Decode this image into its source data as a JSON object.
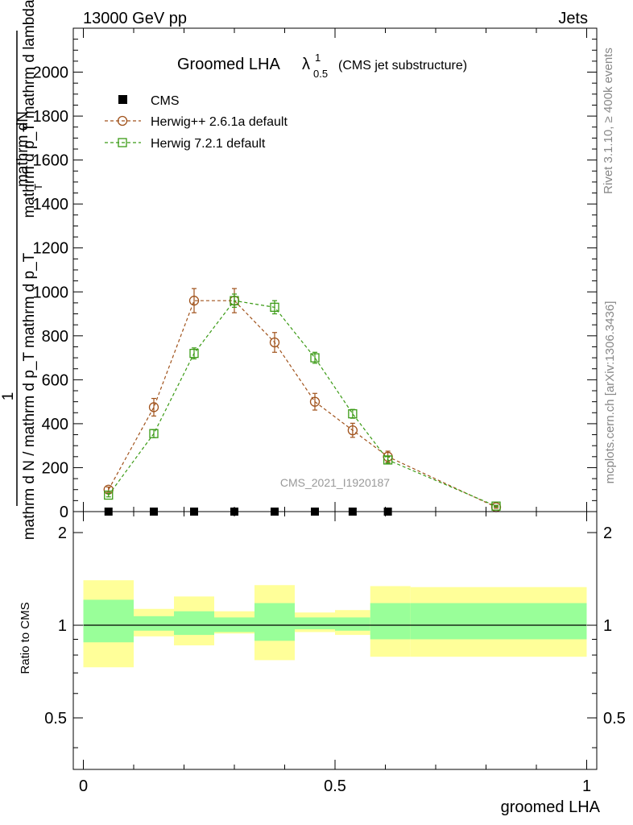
{
  "header": {
    "left": "13000 GeV pp",
    "right": "Jets"
  },
  "side_labels": {
    "rivet": "Rivet 3.1.10, ≥ 400k events",
    "mcplots": "mcplots.cern.ch [arXiv:1306.3436]"
  },
  "title": {
    "main": "Groomed LHA",
    "lambda": "λ",
    "sup": "1",
    "sub": "0.5",
    "suffix": "(CMS jet substructure)"
  },
  "watermark": "CMS_2021_I1920187",
  "ylabel": {
    "num_top": "mathrm dN",
    "num_bottom": "mathrm d p_T mathrm d lambda",
    "sub_T": "T",
    "one": "1",
    "den": "mathrm d N / mathrm d p_T mathrm d p_T"
  },
  "ratio_ylabel": "Ratio to CMS",
  "xlabel": "groomed LHA",
  "colors": {
    "herwig_old": "#a0521b",
    "herwig_new": "#3a9a14",
    "band_inner": "#99ff99",
    "band_outer": "#ffff99",
    "data": "#000000"
  },
  "chart_data": [
    {
      "type": "line",
      "panel": "main",
      "xlim": [
        -0.02,
        1.02
      ],
      "ylim": [
        0,
        2200
      ],
      "yticks_major": [
        0,
        200,
        400,
        600,
        800,
        1000,
        1200,
        1400,
        1600,
        1800,
        2000
      ],
      "xticks_major": [
        0,
        0.5,
        1
      ],
      "legend_position": "top-left",
      "series": [
        {
          "name": "CMS",
          "marker": "filled-square",
          "x": [
            0.05,
            0.14,
            0.22,
            0.3,
            0.38,
            0.46,
            0.535,
            0.605
          ],
          "y": [
            0,
            0,
            0,
            0,
            0,
            0,
            0,
            0
          ]
        },
        {
          "name": "Herwig++ 2.6.1a default",
          "marker": "open-circle",
          "style": "dashed",
          "x": [
            0.05,
            0.14,
            0.22,
            0.3,
            0.38,
            0.46,
            0.535,
            0.605,
            0.82
          ],
          "y": [
            100,
            475,
            960,
            960,
            770,
            500,
            370,
            250,
            20
          ],
          "err": [
            12,
            40,
            55,
            55,
            45,
            38,
            32,
            25,
            5
          ]
        },
        {
          "name": "Herwig 7.2.1 default",
          "marker": "open-square",
          "style": "dashed",
          "x": [
            0.05,
            0.14,
            0.22,
            0.3,
            0.38,
            0.46,
            0.535,
            0.605,
            0.82
          ],
          "y": [
            75,
            355,
            720,
            960,
            930,
            700,
            445,
            235,
            25
          ],
          "err": [
            8,
            18,
            25,
            30,
            30,
            25,
            20,
            15,
            4
          ]
        }
      ]
    },
    {
      "type": "area",
      "panel": "ratio",
      "ylabel": "Ratio to CMS",
      "xlabel": "groomed LHA",
      "ylim": [
        0.34,
        2.34
      ],
      "yticks_labeled": [
        0.5,
        1,
        2
      ],
      "bins": [
        {
          "x0": 0.0,
          "x1": 0.1,
          "inner": [
            0.88,
            1.21
          ],
          "outer": [
            0.73,
            1.4
          ]
        },
        {
          "x0": 0.1,
          "x1": 0.18,
          "inner": [
            0.96,
            1.07
          ],
          "outer": [
            0.92,
            1.13
          ]
        },
        {
          "x0": 0.18,
          "x1": 0.26,
          "inner": [
            0.93,
            1.11
          ],
          "outer": [
            0.86,
            1.24
          ]
        },
        {
          "x0": 0.26,
          "x1": 0.34,
          "inner": [
            0.95,
            1.06
          ],
          "outer": [
            0.94,
            1.11
          ]
        },
        {
          "x0": 0.34,
          "x1": 0.42,
          "inner": [
            0.89,
            1.18
          ],
          "outer": [
            0.77,
            1.35
          ]
        },
        {
          "x0": 0.42,
          "x1": 0.5,
          "inner": [
            0.97,
            1.06
          ],
          "outer": [
            0.95,
            1.1
          ]
        },
        {
          "x0": 0.5,
          "x1": 0.57,
          "inner": [
            0.96,
            1.06
          ],
          "outer": [
            0.93,
            1.12
          ]
        },
        {
          "x0": 0.57,
          "x1": 0.65,
          "inner": [
            0.9,
            1.18
          ],
          "outer": [
            0.79,
            1.34
          ]
        },
        {
          "x0": 0.65,
          "x1": 1.0,
          "inner": [
            0.9,
            1.18
          ],
          "outer": [
            0.79,
            1.33
          ]
        }
      ]
    }
  ]
}
